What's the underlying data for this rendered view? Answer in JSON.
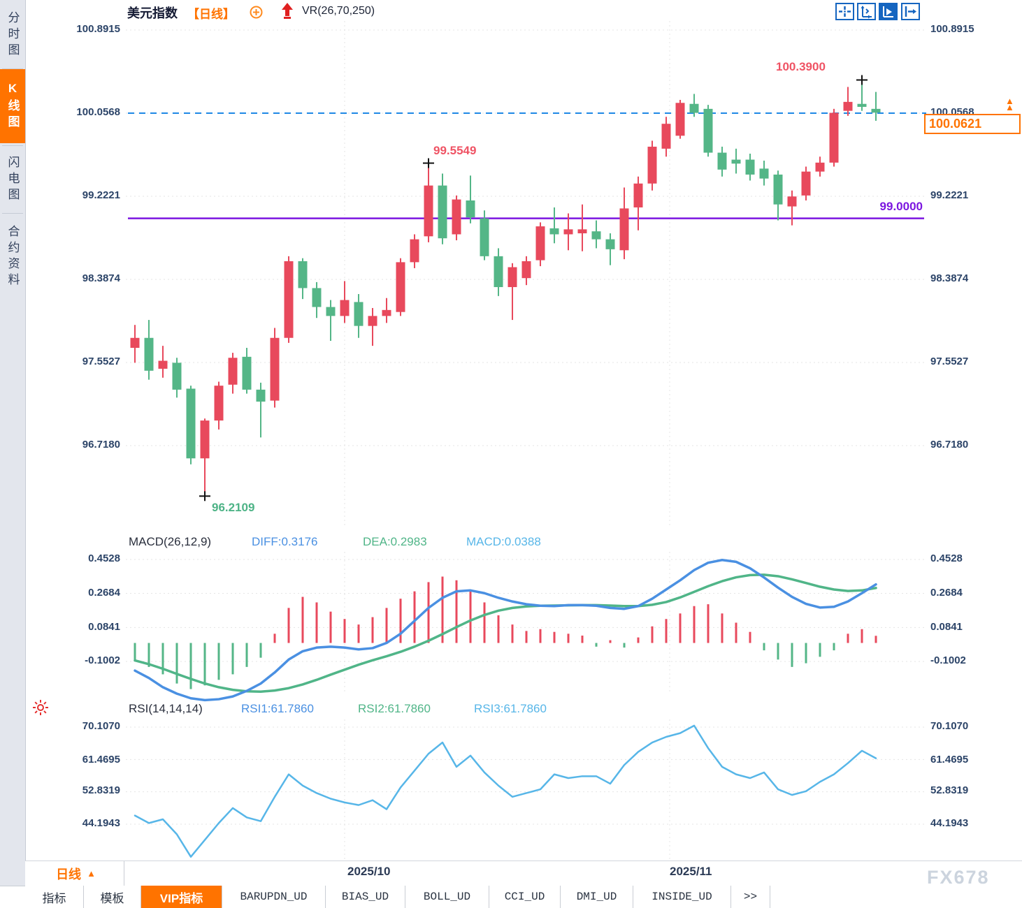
{
  "header": {
    "symbol": "美元指数",
    "period_tag": "【日线】",
    "overlay_indicator": "VR(26,70,250)"
  },
  "toolbar": {
    "icons": [
      "crosshair-tool-icon",
      "yaxis-scale-tool-icon",
      "auto-scale-tool-icon",
      "pan-right-tool-icon"
    ],
    "active_icon": "auto-scale-tool-icon"
  },
  "sidebar": {
    "items": [
      {
        "label": "分时图",
        "active": false
      },
      {
        "label": "K线图",
        "active": true
      },
      {
        "label": "闪电图",
        "active": false
      },
      {
        "label": "合约资料",
        "active": false
      }
    ]
  },
  "price_panel": {
    "axis_labels": [
      "100.8915",
      "100.0568",
      "99.2221",
      "98.3874",
      "97.5527",
      "96.7180"
    ],
    "annotations": {
      "high": "100.3900",
      "mid_high": "99.5549",
      "low": "96.2109",
      "purple_level": "99.0000"
    },
    "current_price": "100.0621",
    "dashed_level": "100.0568"
  },
  "macd_panel": {
    "title": "MACD(26,12,9)",
    "diff_label": "DIFF:0.3176",
    "dea_label": "DEA:0.2983",
    "macd_label": "MACD:0.0388",
    "axis_labels": [
      "0.4528",
      "0.2684",
      "0.0841",
      "-0.1002"
    ]
  },
  "rsi_panel": {
    "title": "RSI(14,14,14)",
    "rsi1_label": "RSI1:61.7860",
    "rsi2_label": "RSI2:61.7860",
    "rsi3_label": "RSI3:61.7860",
    "axis_labels": [
      "70.1070",
      "61.4695",
      "52.8319",
      "44.1943"
    ]
  },
  "xaxis": {
    "period_selector": "日线",
    "dates": [
      "2025/10",
      "2025/11"
    ]
  },
  "tabs": {
    "items": [
      "指标",
      "模板",
      "VIP指标",
      "BARUPDN_UD",
      "BIAS_UD",
      "BOLL_UD",
      "CCI_UD",
      "DMI_UD",
      "INSIDE_UD",
      ">>"
    ],
    "active": "VIP指标"
  },
  "watermark": "FX678",
  "colors": {
    "up": "#e8495c",
    "down": "#54b687",
    "accent_orange": "#ff7300",
    "blue_dashed": "#1e88e5",
    "purple": "#7b16e0",
    "diff_blue": "#4a90e2",
    "dea_green": "#50b588",
    "rsi_blue": "#57b6e8",
    "grid": "#e4e4e4",
    "cross": "#111111"
  },
  "chart_data": [
    {
      "type": "candlestick",
      "title": "美元指数 日线",
      "yticks": [
        100.8915,
        100.0568,
        99.2221,
        98.3874,
        97.5527,
        96.718
      ],
      "ylim": [
        96.0,
        100.95
      ],
      "x_gridline_dates": [
        "2025/10",
        "2025/11"
      ],
      "levels": {
        "dashed_blue": 100.0568,
        "purple": 99.0
      },
      "extremes": [
        {
          "index": 5,
          "price": 96.2109
        },
        {
          "index": 21,
          "price": 99.5549
        },
        {
          "index": 52,
          "price": 100.39
        }
      ],
      "current_price": 100.0621,
      "candles": [
        [
          97.7,
          97.93,
          97.55,
          97.8
        ],
        [
          97.8,
          97.98,
          97.38,
          97.47
        ],
        [
          97.49,
          97.72,
          97.4,
          97.57
        ],
        [
          97.55,
          97.6,
          97.2,
          97.28
        ],
        [
          97.29,
          97.32,
          96.53,
          96.59
        ],
        [
          96.59,
          96.99,
          96.2109,
          96.97
        ],
        [
          96.97,
          97.36,
          96.88,
          97.32
        ],
        [
          97.33,
          97.65,
          97.24,
          97.6
        ],
        [
          97.61,
          97.7,
          97.24,
          97.28
        ],
        [
          97.28,
          97.35,
          96.8,
          97.16
        ],
        [
          97.17,
          97.9,
          97.1,
          97.8
        ],
        [
          97.8,
          98.62,
          97.75,
          98.57
        ],
        [
          98.57,
          98.6,
          98.19,
          98.3
        ],
        [
          98.3,
          98.36,
          98.0,
          98.11
        ],
        [
          98.11,
          98.18,
          97.77,
          98.02
        ],
        [
          98.02,
          98.37,
          97.95,
          98.18
        ],
        [
          98.16,
          98.24,
          97.8,
          97.92
        ],
        [
          97.92,
          98.1,
          97.72,
          98.02
        ],
        [
          98.02,
          98.2,
          97.95,
          98.08
        ],
        [
          98.06,
          98.6,
          98.02,
          98.56
        ],
        [
          98.56,
          98.84,
          98.5,
          98.79
        ],
        [
          98.82,
          99.5549,
          98.76,
          99.33
        ],
        [
          99.33,
          99.45,
          98.74,
          98.8
        ],
        [
          98.84,
          99.23,
          98.78,
          99.19
        ],
        [
          99.18,
          99.43,
          98.95,
          99.01
        ],
        [
          99.0,
          99.08,
          98.58,
          98.62
        ],
        [
          98.62,
          98.7,
          98.22,
          98.31
        ],
        [
          98.31,
          98.55,
          97.98,
          98.51
        ],
        [
          98.4,
          98.62,
          98.33,
          98.57
        ],
        [
          98.58,
          98.96,
          98.52,
          98.92
        ],
        [
          98.9,
          99.11,
          98.75,
          98.84
        ],
        [
          98.84,
          99.05,
          98.68,
          98.89
        ],
        [
          98.85,
          99.14,
          98.67,
          98.89
        ],
        [
          98.87,
          98.98,
          98.7,
          98.79
        ],
        [
          98.79,
          98.85,
          98.53,
          98.69
        ],
        [
          98.68,
          99.31,
          98.59,
          99.1
        ],
        [
          99.11,
          99.42,
          98.88,
          99.35
        ],
        [
          99.35,
          99.78,
          99.28,
          99.72
        ],
        [
          99.7,
          100.02,
          99.62,
          99.95
        ],
        [
          99.83,
          100.19,
          99.8,
          100.16
        ],
        [
          100.15,
          100.25,
          100.02,
          100.06
        ],
        [
          100.1,
          100.14,
          99.62,
          99.66
        ],
        [
          99.66,
          99.72,
          99.42,
          99.49
        ],
        [
          99.59,
          99.7,
          99.45,
          99.55
        ],
        [
          99.59,
          99.65,
          99.38,
          99.44
        ],
        [
          99.5,
          99.58,
          99.33,
          99.4
        ],
        [
          99.44,
          99.48,
          98.98,
          99.14
        ],
        [
          99.12,
          99.28,
          98.93,
          99.22
        ],
        [
          99.23,
          99.52,
          99.18,
          99.47
        ],
        [
          99.47,
          99.62,
          99.42,
          99.56
        ],
        [
          99.56,
          100.1,
          99.52,
          100.06
        ],
        [
          100.08,
          100.32,
          100.03,
          100.17
        ],
        [
          100.15,
          100.39,
          100.08,
          100.12
        ],
        [
          100.1,
          100.27,
          99.98,
          100.0621
        ]
      ]
    },
    {
      "type": "bar+line",
      "title": "MACD(26,12,9)",
      "yticks": [
        0.4528,
        0.2684,
        0.0841,
        -0.1002
      ],
      "ylim": [
        -0.35,
        0.5
      ],
      "series": [
        {
          "name": "DIFF",
          "last": 0.3176,
          "values": [
            -0.15,
            -0.19,
            -0.24,
            -0.275,
            -0.3,
            -0.31,
            -0.305,
            -0.29,
            -0.26,
            -0.22,
            -0.16,
            -0.09,
            -0.045,
            -0.025,
            -0.02,
            -0.025,
            -0.035,
            -0.028,
            0.0,
            0.05,
            0.12,
            0.19,
            0.245,
            0.28,
            0.285,
            0.27,
            0.245,
            0.225,
            0.21,
            0.202,
            0.2,
            0.205,
            0.205,
            0.202,
            0.19,
            0.185,
            0.2,
            0.24,
            0.29,
            0.34,
            0.395,
            0.435,
            0.45,
            0.44,
            0.405,
            0.355,
            0.3,
            0.25,
            0.212,
            0.192,
            0.196,
            0.225,
            0.27,
            0.3176
          ]
        },
        {
          "name": "DEA",
          "last": 0.2983,
          "values": [
            -0.095,
            -0.115,
            -0.14,
            -0.168,
            -0.195,
            -0.22,
            -0.24,
            -0.254,
            -0.262,
            -0.264,
            -0.258,
            -0.245,
            -0.225,
            -0.2,
            -0.172,
            -0.145,
            -0.118,
            -0.094,
            -0.072,
            -0.048,
            -0.02,
            0.012,
            0.048,
            0.086,
            0.122,
            0.152,
            0.175,
            0.19,
            0.198,
            0.202,
            0.203,
            0.204,
            0.205,
            0.205,
            0.203,
            0.2,
            0.2,
            0.207,
            0.222,
            0.247,
            0.277,
            0.308,
            0.335,
            0.356,
            0.368,
            0.37,
            0.362,
            0.345,
            0.325,
            0.305,
            0.29,
            0.282,
            0.285,
            0.2983
          ]
        },
        {
          "name": "MACD_HIST",
          "last": 0.0388,
          "values": [
            -0.1,
            -0.13,
            -0.17,
            -0.22,
            -0.25,
            -0.23,
            -0.2,
            -0.17,
            -0.13,
            -0.08,
            0.05,
            0.19,
            0.25,
            0.22,
            0.17,
            0.13,
            0.1,
            0.14,
            0.19,
            0.24,
            0.28,
            0.33,
            0.36,
            0.34,
            0.29,
            0.22,
            0.15,
            0.1,
            0.065,
            0.075,
            0.06,
            0.05,
            0.04,
            -0.02,
            0.015,
            -0.025,
            0.03,
            0.09,
            0.13,
            0.16,
            0.2,
            0.21,
            0.16,
            0.11,
            0.06,
            -0.04,
            -0.09,
            -0.13,
            -0.11,
            -0.075,
            -0.04,
            0.05,
            0.075,
            0.0388
          ]
        }
      ]
    },
    {
      "type": "line",
      "title": "RSI(14,14,14)",
      "yticks": [
        70.107,
        61.4695,
        52.8319,
        44.1943
      ],
      "ylim": [
        33,
        72
      ],
      "series": [
        {
          "name": "RSI1",
          "last": 61.786,
          "values": [
            46.5,
            44.5,
            45.5,
            41.5,
            35.5,
            40.0,
            44.5,
            48.5,
            46.0,
            45.0,
            51.5,
            57.5,
            54.5,
            52.5,
            51.0,
            50.0,
            49.3,
            50.6,
            48.2,
            54.0,
            58.5,
            63.0,
            66.0,
            59.5,
            62.5,
            58.0,
            54.5,
            51.5,
            52.5,
            53.5,
            57.5,
            56.5,
            57.0,
            57.0,
            55.0,
            60.0,
            63.5,
            66.0,
            67.5,
            68.5,
            70.5,
            64.5,
            59.5,
            57.5,
            56.5,
            58.0,
            53.5,
            52.0,
            53.0,
            55.5,
            57.5,
            60.5,
            63.8,
            61.786
          ]
        }
      ]
    }
  ]
}
